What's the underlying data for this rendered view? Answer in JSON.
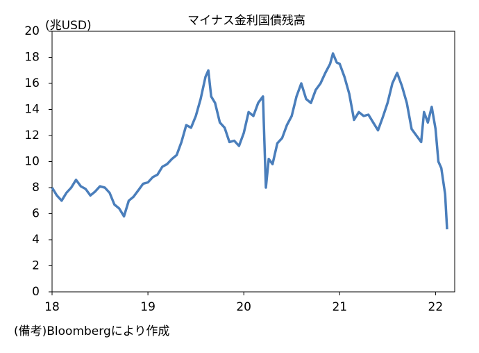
{
  "chart_data": {
    "type": "line",
    "title": "マイナス金利国債残高",
    "y_label": "(兆USD)",
    "note": "(備考)Bloombergにより作成",
    "xlim": [
      18,
      22.2
    ],
    "xticks": [
      18,
      19,
      20,
      21,
      22
    ],
    "ylim": [
      0,
      20
    ],
    "yticks": [
      0,
      2,
      4,
      6,
      8,
      10,
      12,
      14,
      16,
      18,
      20
    ],
    "grid": false,
    "x": [
      18.0,
      18.05,
      18.1,
      18.15,
      18.2,
      18.25,
      18.3,
      18.35,
      18.4,
      18.45,
      18.5,
      18.55,
      18.6,
      18.65,
      18.7,
      18.75,
      18.8,
      18.85,
      18.9,
      18.95,
      19.0,
      19.05,
      19.1,
      19.15,
      19.2,
      19.25,
      19.3,
      19.35,
      19.4,
      19.45,
      19.5,
      19.55,
      19.6,
      19.63,
      19.66,
      19.7,
      19.75,
      19.8,
      19.85,
      19.9,
      19.95,
      20.0,
      20.05,
      20.1,
      20.15,
      20.2,
      20.23,
      20.26,
      20.3,
      20.35,
      20.4,
      20.45,
      20.5,
      20.55,
      20.6,
      20.65,
      20.7,
      20.75,
      20.8,
      20.85,
      20.9,
      20.93,
      20.97,
      21.0,
      21.05,
      21.1,
      21.15,
      21.2,
      21.25,
      21.3,
      21.35,
      21.4,
      21.45,
      21.5,
      21.55,
      21.6,
      21.65,
      21.7,
      21.75,
      21.8,
      21.85,
      21.88,
      21.92,
      21.96,
      22.0,
      22.03,
      22.06,
      22.1,
      22.12
    ],
    "series": [
      {
        "name": "マイナス金利国債残高",
        "color": "#4a7ebb",
        "values": [
          8.0,
          7.4,
          7.0,
          7.6,
          8.0,
          8.6,
          8.1,
          7.9,
          7.4,
          7.7,
          8.1,
          8.0,
          7.6,
          6.7,
          6.4,
          5.8,
          7.0,
          7.3,
          7.8,
          8.3,
          8.4,
          8.8,
          9.0,
          9.6,
          9.8,
          10.2,
          10.5,
          11.5,
          12.8,
          12.6,
          13.5,
          14.8,
          16.5,
          17.0,
          15.0,
          14.5,
          13.0,
          12.6,
          11.5,
          11.6,
          11.2,
          12.2,
          13.8,
          13.5,
          14.5,
          15.0,
          8.0,
          10.2,
          9.8,
          11.4,
          11.8,
          12.8,
          13.5,
          15.0,
          16.0,
          14.8,
          14.5,
          15.5,
          16.0,
          16.8,
          17.5,
          18.3,
          17.6,
          17.5,
          16.5,
          15.2,
          13.2,
          13.8,
          13.5,
          13.6,
          13.0,
          12.4,
          13.4,
          14.5,
          16.0,
          16.8,
          15.8,
          14.5,
          12.5,
          12.0,
          11.5,
          13.8,
          13.0,
          14.2,
          12.5,
          10.0,
          9.5,
          7.5,
          4.8
        ]
      }
    ]
  }
}
